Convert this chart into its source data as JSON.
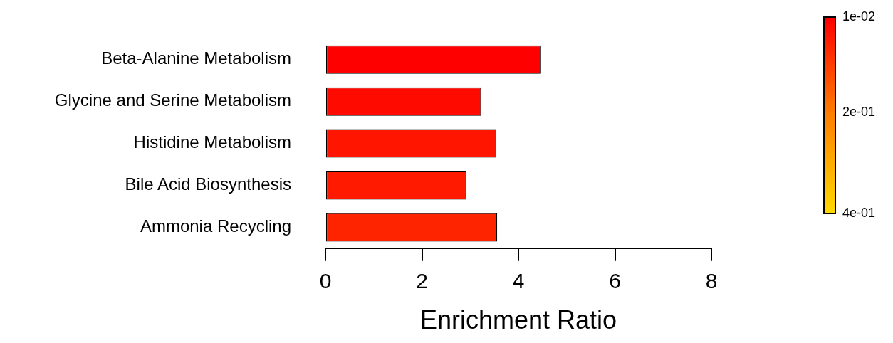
{
  "chart_data": {
    "type": "bar",
    "orientation": "horizontal",
    "xlabel": "Enrichment Ratio",
    "categories": [
      "Beta-Alanine Metabolism",
      "Glycine and Serine Metabolism",
      "Histidine Metabolism",
      "Bile Acid Biosynthesis",
      "Ammonia Recycling"
    ],
    "values": [
      4.47,
      3.23,
      3.54,
      2.92,
      3.56
    ],
    "colors": [
      "#ff0000",
      "#ff0a00",
      "#ff1500",
      "#ff1a00",
      "#ff2400"
    ],
    "xlim": [
      0,
      8
    ],
    "xticks": [
      0,
      2,
      4,
      6,
      8
    ],
    "clim": [
      0.4,
      0.01
    ],
    "cticks": [
      {
        "value": 0.01,
        "label": "1e-02"
      },
      {
        "value": 0.2,
        "label": "2e-01"
      },
      {
        "value": 0.4,
        "label": "4e-01"
      }
    ],
    "grid": false,
    "legend": false
  }
}
